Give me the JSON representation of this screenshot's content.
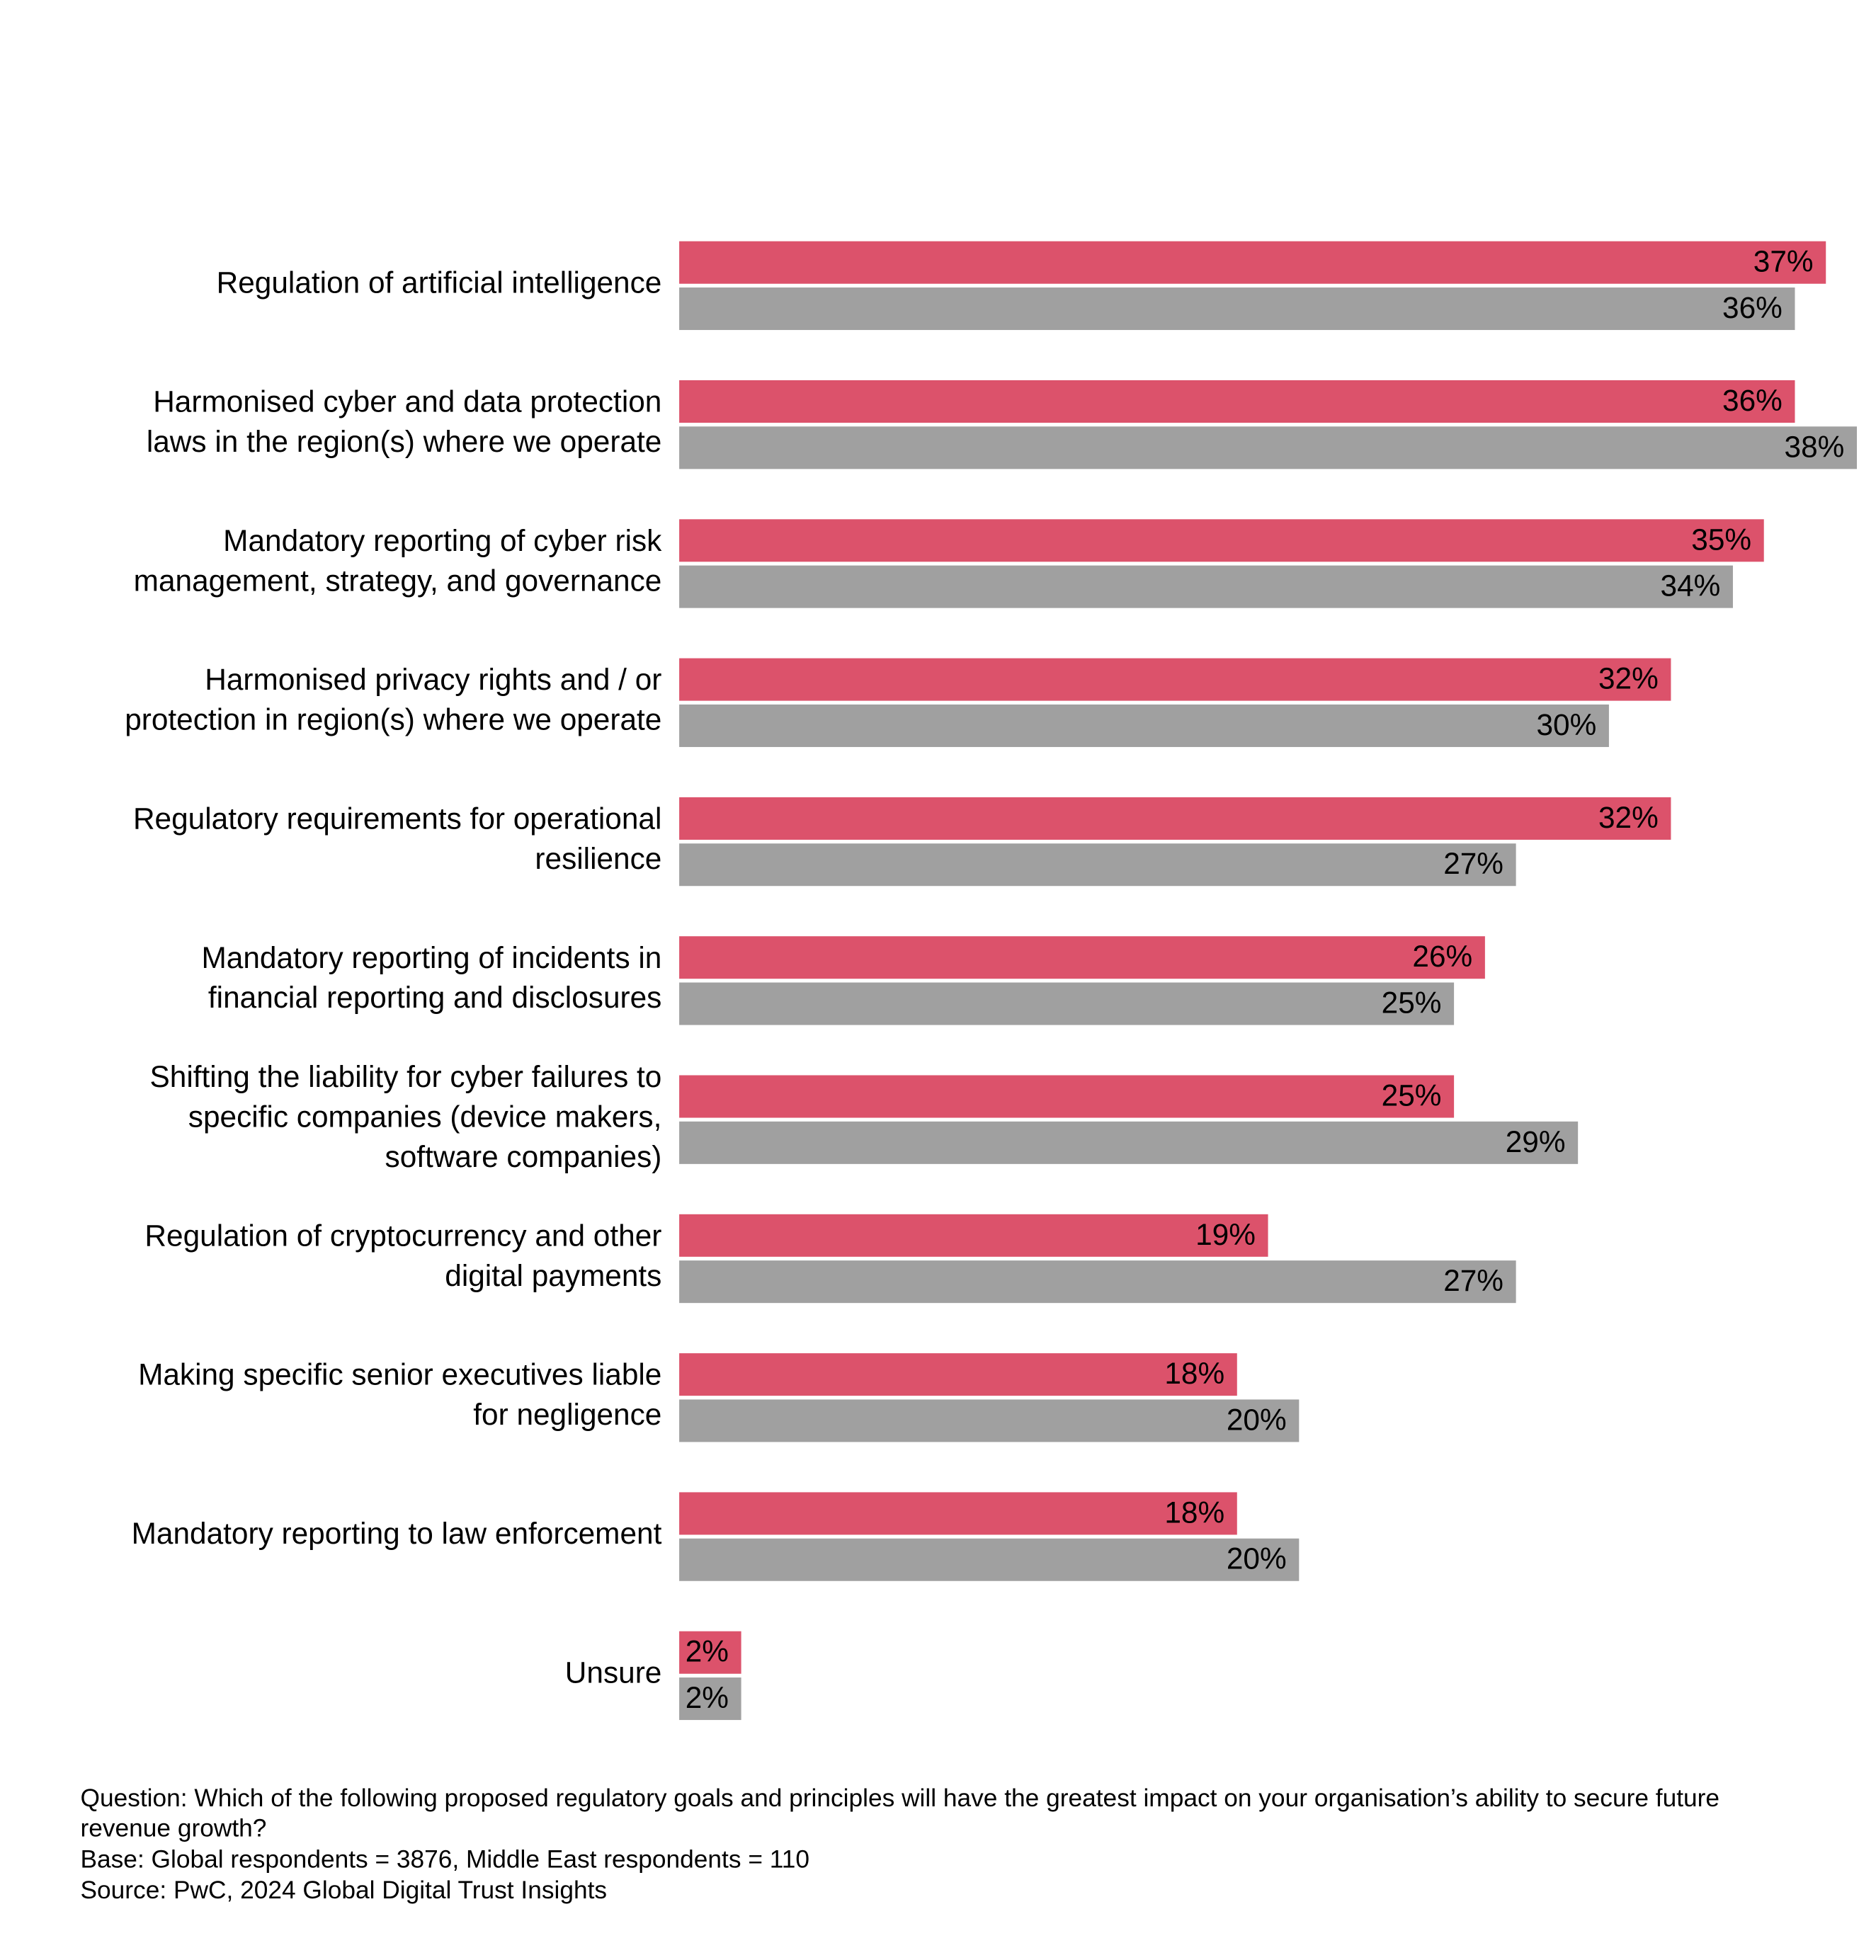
{
  "chart_data": {
    "type": "bar",
    "orientation": "horizontal",
    "categories": [
      "Regulation of artificial intelligence",
      "Harmonised cyber and data protection\nlaws in the region(s) where we operate",
      "Mandatory reporting of cyber risk\nmanagement, strategy, and governance",
      "Harmonised privacy rights and / or\nprotection in region(s) where we operate",
      "Regulatory requirements for operational\nresilience",
      "Mandatory reporting of incidents in\nfinancial reporting and disclosures",
      "Shifting the liability for cyber failures to\nspecific companies (device makers,\nsoftware companies)",
      "Regulation of cryptocurrency and other\ndigital payments",
      "Making specific senior executives liable\nfor negligence",
      "Mandatory reporting to law enforcement",
      "Unsure"
    ],
    "series": [
      {
        "color": "#dc526b",
        "label_color": "#ffffff",
        "values": [
          37,
          36,
          35,
          32,
          32,
          26,
          25,
          19,
          18,
          18,
          2
        ],
        "value_labels": [
          "37%",
          "36%",
          "35%",
          "32%",
          "32%",
          "26%",
          "25%",
          "19%",
          "18%",
          "18%",
          "2%"
        ]
      },
      {
        "color": "#a0a0a0",
        "label_color": "#000000",
        "values": [
          36,
          38,
          34,
          30,
          27,
          25,
          29,
          27,
          20,
          20,
          2
        ],
        "value_labels": [
          "36%",
          "38%",
          "34%",
          "30%",
          "27%",
          "25%",
          "29%",
          "27%",
          "20%",
          "20%",
          "2%"
        ]
      }
    ],
    "footnotes": [
      "Question: Which of the following proposed regulatory goals and principles will have the greatest impact on your organisation’s ability to secure future\nrevenue growth?",
      "Base: Global respondents = 3876, Middle East respondents = 110",
      "Source: PwC, 2024 Global Digital Trust Insights"
    ]
  }
}
